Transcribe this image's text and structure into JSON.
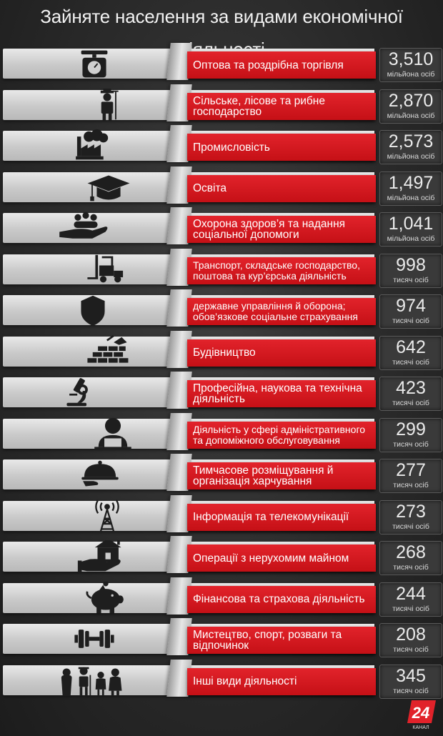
{
  "title": "Зайняте населення за видами економічної діяльності",
  "rows": [
    {
      "label": "Оптова та роздрібна торгівля",
      "value": "3,510",
      "unit": "мільйона осіб",
      "icon": "scale-icon"
    },
    {
      "label": "Сільське, лісове та рибне господарство",
      "value": "2,870",
      "unit": "мільйона осіб",
      "icon": "farmer-icon"
    },
    {
      "label": "Промисловість",
      "value": "2,573",
      "unit": "мільйона осіб",
      "icon": "factory-icon"
    },
    {
      "label": "Освіта",
      "value": "1,497",
      "unit": "мільйона осіб",
      "icon": "graduation-cap-icon"
    },
    {
      "label": "Охорона здоров’я та надання соціальної допомоги",
      "value": "1,041",
      "unit": "мільйона осіб",
      "icon": "hand-people-icon"
    },
    {
      "label": "Транспорт, складське господарство, поштова та кур’єрська діяльність",
      "value": "998",
      "unit": "тисяч осіб",
      "icon": "forklift-icon"
    },
    {
      "label": "державне управління й оборона; обов’язкове соціальне страхування",
      "value": "974",
      "unit": "тисячі осіб",
      "icon": "shield-icon"
    },
    {
      "label": "Будівництво",
      "value": "642",
      "unit": "тисячі осіб",
      "icon": "bricks-icon"
    },
    {
      "label": "Професійна, наукова та технічна діяльність",
      "value": "423",
      "unit": "тисячі осіб",
      "icon": "microscope-icon"
    },
    {
      "label": "Діяльність у сфері адміністративного та допоміжного обслуговування",
      "value": "299",
      "unit": "тисяч осіб",
      "icon": "office-worker-icon"
    },
    {
      "label": "Тимчасове розміщування й організація харчування",
      "value": "277",
      "unit": "тисяч осіб",
      "icon": "cloche-icon"
    },
    {
      "label": "Інформація та телекомунікації",
      "value": "273",
      "unit": "тисячі осіб",
      "icon": "antenna-icon"
    },
    {
      "label": "Операції з нерухомим майном",
      "value": "268",
      "unit": "тисяч осіб",
      "icon": "house-hand-icon"
    },
    {
      "label": "Фінансова та страхова діяльність",
      "value": "244",
      "unit": "тисячі осіб",
      "icon": "piggy-bank-icon"
    },
    {
      "label": "Мистецтво, спорт, розваги та відпочинок",
      "value": "208",
      "unit": "тисяч осіб",
      "icon": "dumbbell-icon"
    },
    {
      "label": "Інші види діяльності",
      "value": "345",
      "unit": "тисяч осіб",
      "icon": "people-icon"
    }
  ],
  "logo": {
    "number": "24",
    "text": "КАНАЛ"
  }
}
